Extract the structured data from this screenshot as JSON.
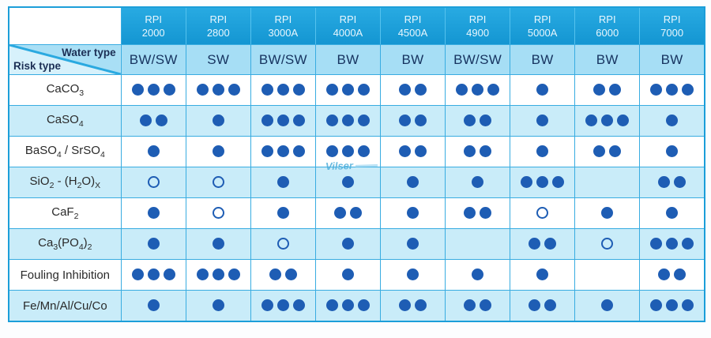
{
  "table": {
    "corner": {
      "water_type_label": "Water type",
      "risk_type_label": "Risk type"
    },
    "columns": [
      {
        "brand": "RPI",
        "model": "2000",
        "water_type": "BW/SW"
      },
      {
        "brand": "RPI",
        "model": "2800",
        "water_type": "SW"
      },
      {
        "brand": "RPI",
        "model": "3000A",
        "water_type": "BW/SW"
      },
      {
        "brand": "RPI",
        "model": "4000A",
        "water_type": "BW"
      },
      {
        "brand": "RPI",
        "model": "4500A",
        "water_type": "BW"
      },
      {
        "brand": "RPI",
        "model": "4900",
        "water_type": "BW/SW"
      },
      {
        "brand": "RPI",
        "model": "5000A",
        "water_type": "BW"
      },
      {
        "brand": "RPI",
        "model": "6000",
        "water_type": "BW"
      },
      {
        "brand": "RPI",
        "model": "7000",
        "water_type": "BW"
      }
    ],
    "rows": [
      {
        "label": "CaCO~3~",
        "cells": [
          3,
          3,
          3,
          3,
          2,
          3,
          1,
          2,
          3
        ]
      },
      {
        "label": "CaSO~4~",
        "cells": [
          2,
          1,
          3,
          3,
          2,
          2,
          1,
          3,
          1
        ]
      },
      {
        "label": "BaSO~4~ / SrSO~4~",
        "cells": [
          1,
          1,
          3,
          3,
          2,
          2,
          1,
          2,
          1
        ]
      },
      {
        "label": "SiO~2~ - (H~2~O)~X~",
        "cells": [
          "open",
          "open",
          1,
          1,
          1,
          1,
          3,
          0,
          2
        ]
      },
      {
        "label": "CaF~2~",
        "cells": [
          1,
          "open",
          1,
          2,
          1,
          2,
          "open",
          1,
          1
        ]
      },
      {
        "label": "Ca~3~(PO~4~)~2~",
        "cells": [
          1,
          1,
          "open",
          1,
          1,
          0,
          2,
          "open",
          3
        ]
      },
      {
        "label": "Fouling Inhibition",
        "cells": [
          3,
          3,
          2,
          1,
          1,
          1,
          1,
          0,
          2
        ]
      },
      {
        "label": "Fe/Mn/Al/Cu/Co",
        "cells": [
          1,
          1,
          3,
          3,
          2,
          2,
          2,
          1,
          3
        ]
      }
    ]
  },
  "watermark": "Vilser",
  "colors": {
    "header_bg": "#1da1db",
    "header_text": "#e8f6fd",
    "water_row_bg": "#a6def5",
    "water_row_text": "#16335f",
    "alt_row_bg": "#c9ecf9",
    "grid_line": "#38ace1",
    "outer_border": "#1b9ed9",
    "dot_fill": "#1e5db4"
  }
}
